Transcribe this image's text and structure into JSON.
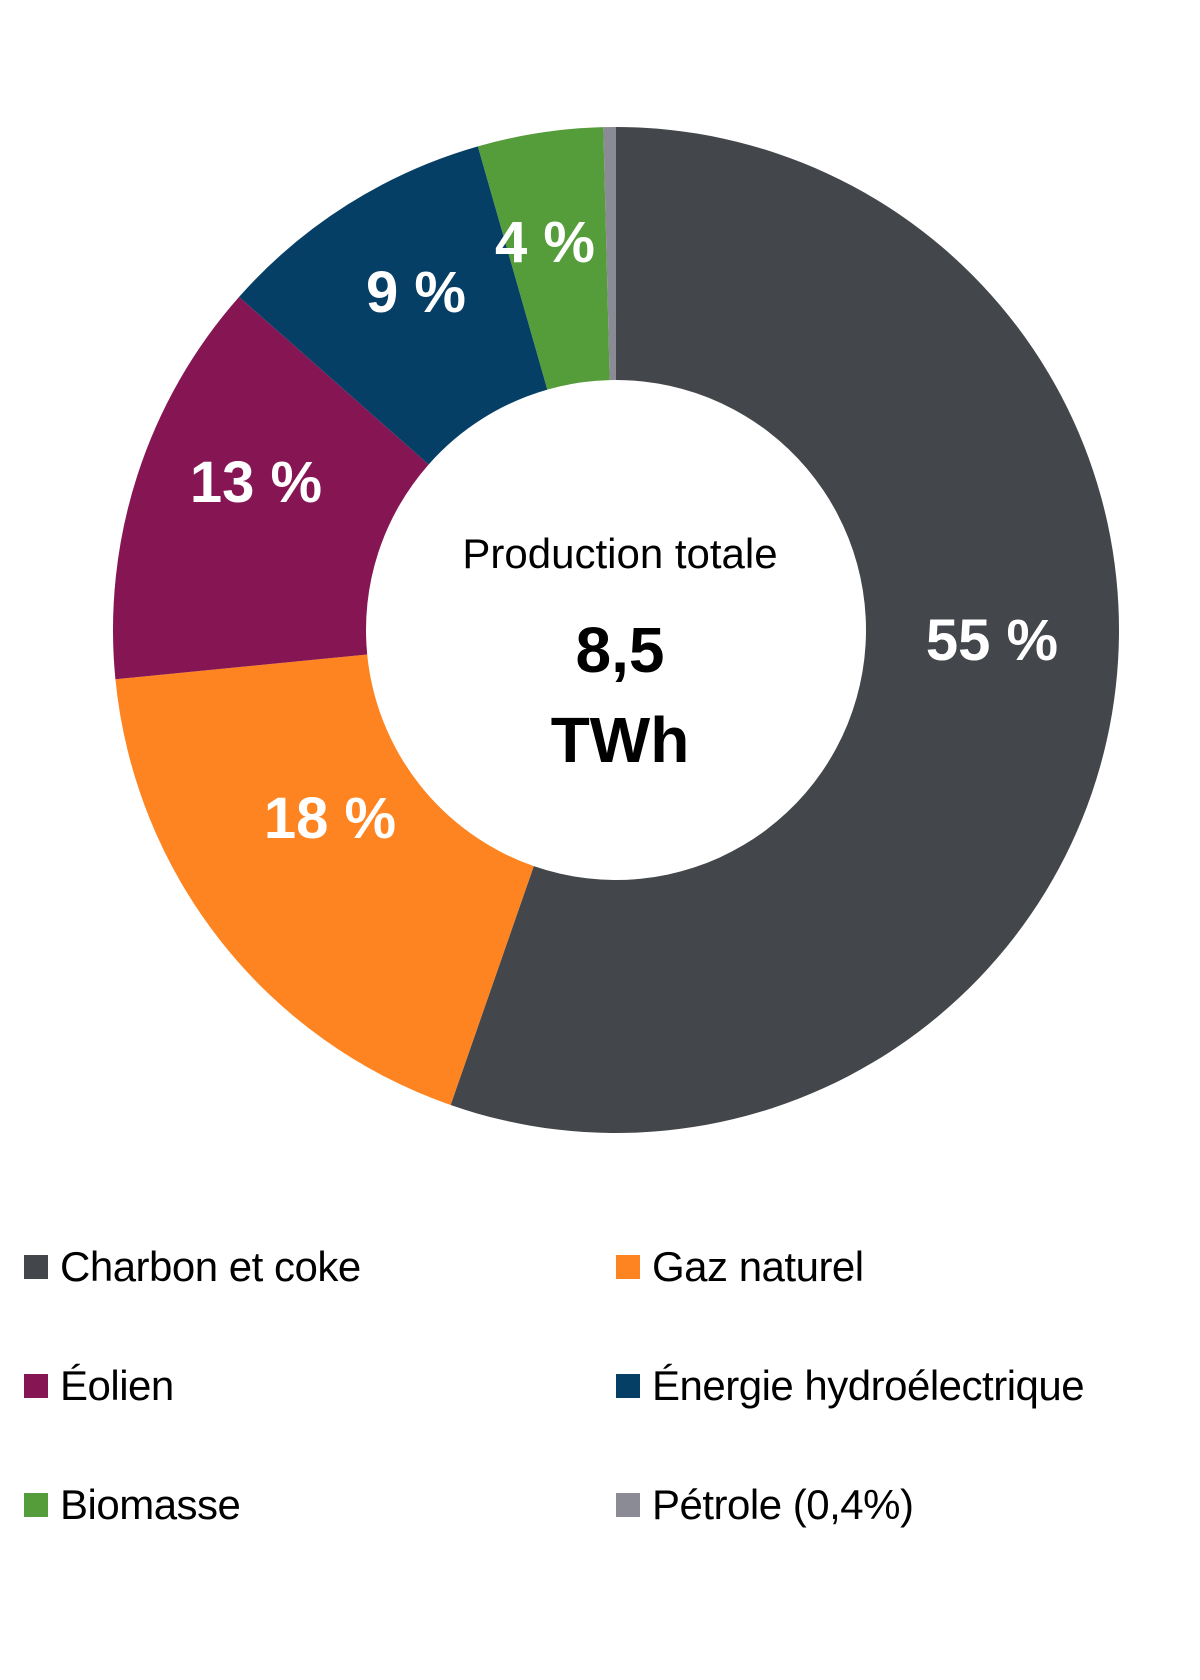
{
  "chart_data": {
    "type": "pie",
    "variant": "donut",
    "title": "",
    "center_label": {
      "title": "Production totale",
      "value": "8,5",
      "unit": "TWh"
    },
    "start_angle_deg": 0,
    "direction": "clockwise",
    "categories": [
      "Charbon et coke",
      "Gaz naturel",
      "Éolien",
      "Énergie hydroélectrique",
      "Biomasse",
      "Pétrole (0,4%)"
    ],
    "values": [
      55,
      18,
      13,
      9,
      4,
      0.4
    ],
    "value_labels": [
      "55 %",
      "18 %",
      "13 %",
      "9 %",
      "4 %",
      ""
    ],
    "colors": [
      "#43464b",
      "#fd8421",
      "#861653",
      "#063f66",
      "#559c3a",
      "#8b8b95"
    ],
    "legend_position": "bottom"
  },
  "legend": {
    "items": [
      {
        "label": "Charbon et coke",
        "color": "#43464b"
      },
      {
        "label": "Gaz naturel",
        "color": "#fd8421"
      },
      {
        "label": "Éolien",
        "color": "#861653"
      },
      {
        "label": "Énergie hydroélectrique",
        "color": "#063f66"
      },
      {
        "label": "Biomasse",
        "color": "#559c3a"
      },
      {
        "label": "Pétrole (0,4%)",
        "color": "#8b8b95"
      }
    ]
  }
}
